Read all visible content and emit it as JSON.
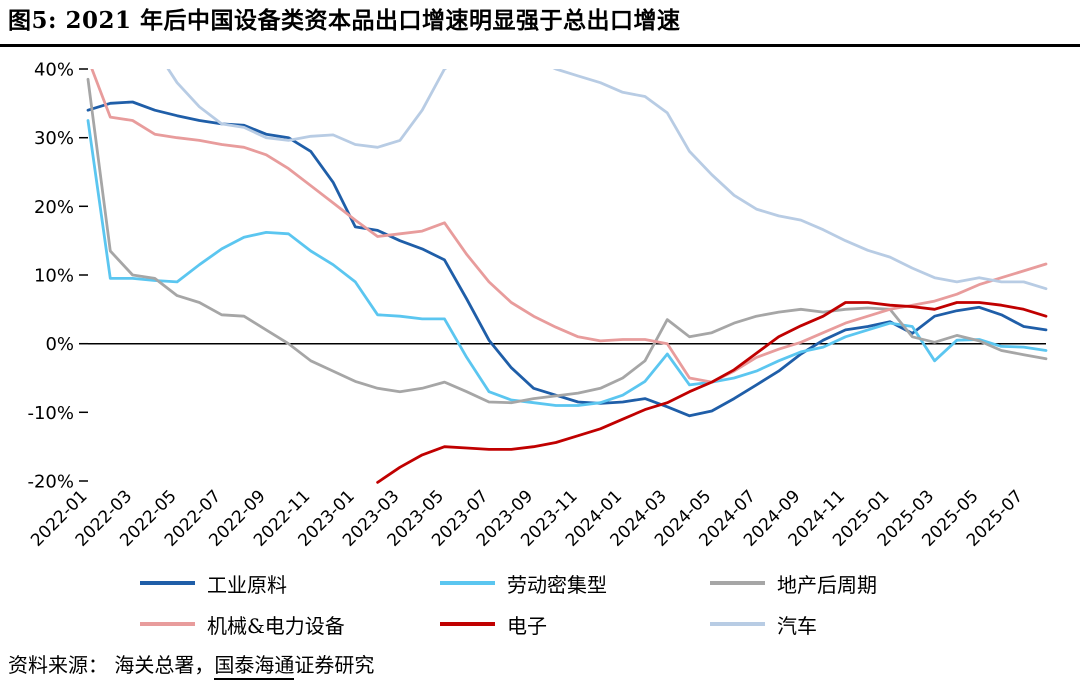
{
  "title": "图5:  2021 年后中国设备类资本品出口增速明显强于总出口增速",
  "source": {
    "prefix": "资料来源： 海关总署，",
    "link": "国泰海通",
    "suffix": "证券研究"
  },
  "chart_data": {
    "type": "line",
    "title": "图5: 2021 年后中国设备类资本品出口增速明显强于总出口增速",
    "xlabel": "",
    "ylabel": "",
    "ylim": [
      -20,
      40
    ],
    "yticks": [
      40,
      30,
      20,
      10,
      0,
      -10,
      -20
    ],
    "ytick_suffix": "%",
    "x_tick_every": 2,
    "grid": "zero-line-only",
    "legend_position": "bottom",
    "x": [
      "2022-01",
      "2022-02",
      "2022-03",
      "2022-04",
      "2022-05",
      "2022-06",
      "2022-07",
      "2022-08",
      "2022-09",
      "2022-10",
      "2022-11",
      "2022-12",
      "2023-01",
      "2023-02",
      "2023-03",
      "2023-04",
      "2023-05",
      "2023-06",
      "2023-07",
      "2023-08",
      "2023-09",
      "2023-10",
      "2023-11",
      "2023-12",
      "2024-01",
      "2024-02",
      "2024-03",
      "2024-04",
      "2024-05",
      "2024-06",
      "2024-07",
      "2024-08",
      "2024-09",
      "2024-10",
      "2024-11",
      "2024-12",
      "2025-01",
      "2025-02",
      "2025-03",
      "2025-04",
      "2025-05",
      "2025-06",
      "2025-07",
      "2025-08"
    ],
    "series": [
      {
        "name": "工业原料",
        "color": "#1F5EA8",
        "values": [
          34,
          35,
          35.2,
          34,
          33.2,
          32.5,
          32,
          31.8,
          30.5,
          30,
          28,
          23.5,
          17,
          16.5,
          15,
          13.8,
          12.2,
          6.5,
          0.5,
          -3.5,
          -6.5,
          -7.5,
          -8.5,
          -8.7,
          -8.5,
          -8,
          -9.2,
          -10.5,
          -9.8,
          -8,
          -6,
          -4,
          -1.5,
          0.5,
          2,
          2.5,
          3.2,
          1.5,
          4,
          4.8,
          5.3,
          4.2,
          2.5,
          2
        ]
      },
      {
        "name": "劳动密集型",
        "color": "#5BC6F0",
        "values": [
          32.5,
          9.5,
          9.5,
          9.2,
          9,
          11.5,
          13.8,
          15.5,
          16.2,
          16,
          13.5,
          11.5,
          9,
          4.2,
          4,
          3.6,
          3.6,
          -2,
          -7,
          -8.2,
          -8.6,
          -9,
          -9,
          -8.6,
          -7.5,
          -5.5,
          -1.5,
          -6,
          -5.6,
          -5,
          -4,
          -2.5,
          -1.2,
          -0.5,
          1,
          2,
          3,
          2.5,
          -2.5,
          0.5,
          0.6,
          -0.4,
          -0.5,
          -1
        ]
      },
      {
        "name": "地产后周期",
        "color": "#A6A6A6",
        "values": [
          38.5,
          13.5,
          10,
          9.5,
          7,
          6,
          4.2,
          4,
          2,
          0,
          -2.5,
          -4,
          -5.5,
          -6.5,
          -7,
          -6.5,
          -5.6,
          -7,
          -8.5,
          -8.6,
          -8,
          -7.6,
          -7.2,
          -6.5,
          -5,
          -2.5,
          3.5,
          1,
          1.6,
          3,
          4,
          4.6,
          5,
          4.6,
          5,
          5.2,
          5,
          1,
          0.2,
          1.2,
          0.4,
          -1,
          -1.6,
          -2.2
        ]
      },
      {
        "name": "机械&电力设备",
        "color": "#E89C9C",
        "values": [
          41.5,
          33,
          32.5,
          30.5,
          30,
          29.6,
          29,
          28.6,
          27.5,
          25.5,
          23,
          20.5,
          18,
          15.6,
          16,
          16.4,
          17.6,
          13,
          9,
          6,
          4,
          2.4,
          1,
          0.4,
          0.6,
          0.6,
          0,
          -5,
          -5.6,
          -4,
          -2,
          -0.8,
          0.2,
          1.6,
          3,
          4,
          5,
          5.6,
          6.2,
          7.2,
          8.6,
          9.6,
          10.6,
          11.6
        ]
      },
      {
        "name": "电子",
        "color": "#C00000",
        "values": [
          null,
          null,
          null,
          null,
          null,
          null,
          null,
          null,
          null,
          null,
          null,
          null,
          null,
          -20.2,
          -18,
          -16.2,
          -15,
          -15.2,
          -15.4,
          -15.4,
          -15,
          -14.4,
          -13.4,
          -12.4,
          -11,
          -9.6,
          -8.6,
          -7,
          -5.6,
          -3.8,
          -1.4,
          1,
          2.6,
          4,
          6,
          6,
          5.6,
          5.4,
          5,
          6,
          6,
          5.6,
          5,
          4
        ]
      },
      {
        "name": "汽车",
        "color": "#B8CCE4",
        "values": [
          null,
          null,
          null,
          43,
          38,
          34.5,
          32,
          31.5,
          30,
          29.6,
          30.2,
          30.4,
          29,
          28.6,
          29.6,
          34,
          40,
          42,
          41.5,
          42,
          41.5,
          40,
          39,
          38,
          36.6,
          36,
          33.6,
          28,
          24.6,
          21.6,
          19.6,
          18.6,
          18,
          16.6,
          15,
          13.6,
          12.6,
          11,
          9.6,
          9,
          9.6,
          9,
          9,
          8
        ]
      }
    ],
    "legend_rows": [
      [
        "工业原料",
        "劳动密集型",
        "地产后周期"
      ],
      [
        "机械&电力设备",
        "电子",
        "汽车"
      ]
    ]
  }
}
